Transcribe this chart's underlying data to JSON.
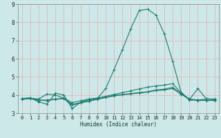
{
  "xlabel": "Humidex (Indice chaleur)",
  "background_color": "#cce8e8",
  "grid_color": "#e8b4b4",
  "line_color": "#1a7a6e",
  "xlim": [
    -0.5,
    23.5
  ],
  "ylim": [
    3.0,
    9.0
  ],
  "yticks": [
    3,
    4,
    5,
    6,
    7,
    8,
    9
  ],
  "xticks": [
    0,
    1,
    2,
    3,
    4,
    5,
    6,
    7,
    8,
    9,
    10,
    11,
    12,
    13,
    14,
    15,
    16,
    17,
    18,
    19,
    20,
    21,
    22,
    23
  ],
  "lines": [
    {
      "x": [
        0,
        1,
        2,
        3,
        4,
        5,
        6,
        7,
        8,
        9,
        10,
        11,
        12,
        13,
        14,
        15,
        16,
        17,
        18,
        19,
        20,
        21,
        22,
        23
      ],
      "y": [
        3.8,
        3.85,
        3.62,
        3.5,
        4.1,
        4.0,
        3.25,
        3.6,
        3.75,
        3.8,
        4.35,
        5.4,
        6.5,
        7.65,
        8.65,
        8.72,
        8.4,
        7.35,
        5.85,
        4.15,
        3.75,
        4.35,
        3.8,
        3.75
      ]
    },
    {
      "x": [
        0,
        1,
        2,
        3,
        4,
        5,
        6,
        7,
        8,
        9,
        10,
        11,
        12,
        13,
        14,
        15,
        16,
        17,
        18,
        19,
        20,
        21,
        22,
        23
      ],
      "y": [
        3.78,
        3.82,
        3.78,
        4.05,
        4.0,
        3.82,
        3.58,
        3.68,
        3.78,
        3.83,
        3.93,
        4.03,
        4.13,
        4.23,
        4.33,
        4.43,
        4.5,
        4.55,
        4.62,
        4.12,
        3.72,
        3.72,
        3.78,
        3.78
      ]
    },
    {
      "x": [
        0,
        1,
        2,
        3,
        4,
        5,
        6,
        7,
        8,
        9,
        10,
        11,
        12,
        13,
        14,
        15,
        16,
        17,
        18,
        19,
        20,
        21,
        22,
        23
      ],
      "y": [
        3.78,
        3.82,
        3.72,
        3.72,
        3.78,
        3.82,
        3.48,
        3.58,
        3.68,
        3.78,
        3.88,
        3.97,
        4.03,
        4.08,
        4.13,
        4.18,
        4.28,
        4.32,
        4.42,
        4.08,
        3.78,
        3.72,
        3.72,
        3.72
      ]
    },
    {
      "x": [
        0,
        1,
        2,
        3,
        4,
        5,
        6,
        7,
        8,
        9,
        10,
        11,
        12,
        13,
        14,
        15,
        16,
        17,
        18,
        19,
        20,
        21,
        22,
        23
      ],
      "y": [
        3.76,
        3.8,
        3.7,
        3.7,
        3.76,
        3.8,
        3.44,
        3.56,
        3.66,
        3.76,
        3.86,
        3.95,
        4.01,
        4.06,
        4.11,
        4.16,
        4.24,
        4.28,
        4.36,
        4.04,
        3.76,
        3.7,
        3.7,
        3.7
      ]
    }
  ]
}
